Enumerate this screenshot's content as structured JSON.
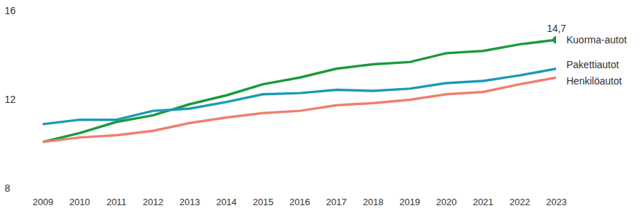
{
  "chart_data": {
    "type": "line",
    "x": [
      2009,
      2010,
      2011,
      2012,
      2013,
      2014,
      2015,
      2016,
      2017,
      2018,
      2019,
      2020,
      2021,
      2022,
      2023
    ],
    "series": [
      {
        "name": "Kuorma-autot",
        "color": "#1a9a3c",
        "values": [
          10.1,
          10.5,
          11.0,
          11.3,
          11.8,
          12.2,
          12.7,
          13.0,
          13.4,
          13.6,
          13.7,
          14.1,
          14.2,
          14.5,
          14.7
        ]
      },
      {
        "name": "Pakettiautot",
        "color": "#1b9ab5",
        "values": [
          10.9,
          11.1,
          11.1,
          11.5,
          11.6,
          11.9,
          12.25,
          12.3,
          12.45,
          12.4,
          12.5,
          12.75,
          12.85,
          13.1,
          13.4
        ]
      },
      {
        "name": "Henkilöautot",
        "color": "#f07f6e",
        "values": [
          10.1,
          10.3,
          10.4,
          10.6,
          10.95,
          11.2,
          11.4,
          11.5,
          11.75,
          11.85,
          12.0,
          12.25,
          12.35,
          12.7,
          13.0
        ]
      }
    ],
    "annotations": [
      {
        "text": "14,7",
        "x": 2023,
        "y": 14.7,
        "series": "Kuorma-autot"
      }
    ],
    "xlim": [
      2009,
      2023
    ],
    "xticks": [
      2009,
      2010,
      2011,
      2012,
      2013,
      2014,
      2015,
      2016,
      2017,
      2018,
      2019,
      2020,
      2021,
      2022,
      2023
    ],
    "ylim": [
      8,
      16
    ],
    "yticks": [
      8,
      12,
      16
    ],
    "grid": false,
    "legend": "right"
  }
}
